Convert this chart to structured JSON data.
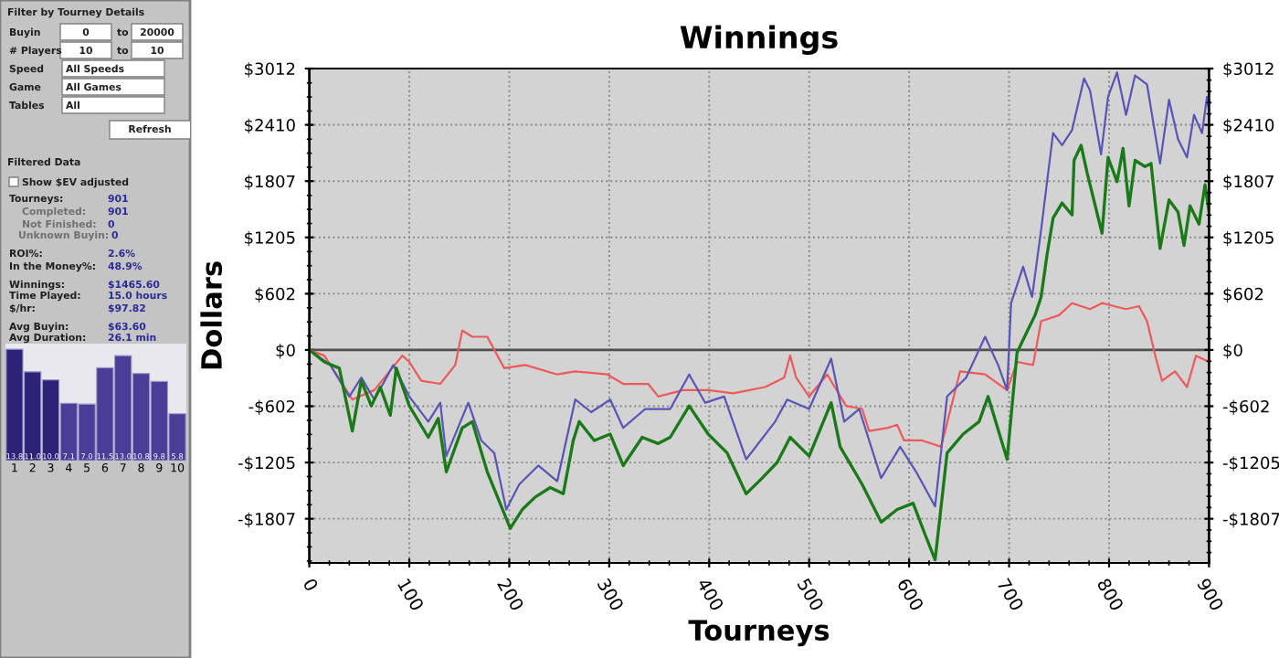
{
  "chart_data": [
    {
      "type": "line",
      "title": "Winnings",
      "xlabel": "Tourneys",
      "ylabel": "Dollars",
      "xlim": [
        0,
        900
      ],
      "xticks": [
        0,
        100,
        200,
        300,
        400,
        500,
        600,
        700,
        800,
        900
      ],
      "ylim": [
        -2280,
        3012
      ],
      "yticks": [
        {
          "value": -1807,
          "label": "-$1807"
        },
        {
          "value": -1205,
          "label": "-$1205"
        },
        {
          "value": -602,
          "label": "-$602"
        },
        {
          "value": 0,
          "label": "$0"
        },
        {
          "value": 602,
          "label": "$602"
        },
        {
          "value": 1205,
          "label": "$1205"
        },
        {
          "value": 1807,
          "label": "$1807"
        },
        {
          "value": 2410,
          "label": "$2410"
        },
        {
          "value": 3012,
          "label": "$3012"
        }
      ],
      "y2lim": [
        -2280,
        3012
      ],
      "y2ticks": [
        {
          "value": -1807,
          "label": "-$1807"
        },
        {
          "value": -1205,
          "label": "-$1205"
        },
        {
          "value": -602,
          "label": "-$602"
        },
        {
          "value": 0,
          "label": "$0"
        },
        {
          "value": 602,
          "label": "$602"
        },
        {
          "value": 1205,
          "label": "$1205"
        },
        {
          "value": 1807,
          "label": "$1807"
        },
        {
          "value": 2410,
          "label": "$2410"
        },
        {
          "value": 3012,
          "label": "$3012"
        }
      ],
      "grid": true,
      "legend": false,
      "ref_lines": [
        {
          "axis": "y",
          "value": 0,
          "color": "#505050"
        }
      ],
      "series": [
        {
          "color": "#ee5a5a",
          "x": [
            0,
            15,
            43,
            65,
            93,
            100,
            112,
            131,
            146,
            153,
            163,
            178,
            195,
            216,
            248,
            266,
            298,
            314,
            339,
            349,
            374,
            399,
            424,
            456,
            475,
            481,
            487,
            500,
            518,
            537,
            553,
            560,
            579,
            588,
            595,
            613,
            632,
            651,
            676,
            698,
            708,
            724,
            732,
            750,
            763,
            781,
            793,
            805,
            817,
            830,
            838,
            847,
            853,
            866,
            878,
            887,
            900
          ],
          "values": [
            0,
            -61,
            -531,
            -430,
            -61,
            -128,
            -330,
            -363,
            -161,
            208,
            141,
            141,
            -195,
            -161,
            -262,
            -229,
            -262,
            -363,
            -363,
            -498,
            -430,
            -430,
            -464,
            -397,
            -296,
            -61,
            -296,
            -498,
            -262,
            -599,
            -632,
            -868,
            -834,
            -801,
            -969,
            -969,
            -1036,
            -229,
            -262,
            -430,
            -128,
            -161,
            307,
            372,
            501,
            437,
            501,
            469,
            437,
            469,
            307,
            -94,
            -330,
            -229,
            -397,
            -61,
            -128
          ]
        },
        {
          "color": "#5a55b5",
          "x": [
            0,
            21,
            40,
            52,
            65,
            84,
            100,
            119,
            131,
            137,
            159,
            172,
            185,
            197,
            210,
            229,
            248,
            266,
            282,
            301,
            314,
            336,
            361,
            380,
            396,
            415,
            437,
            466,
            478,
            500,
            522,
            535,
            550,
            572,
            591,
            607,
            626,
            638,
            657,
            676,
            689,
            698,
            702,
            714,
            723,
            732,
            744,
            753,
            763,
            775,
            781,
            792,
            799,
            808,
            817,
            826,
            838,
            851,
            860,
            869,
            878,
            885,
            893,
            898,
            900
          ],
          "values": [
            0,
            -161,
            -498,
            -296,
            -531,
            -161,
            -498,
            -767,
            -565,
            -1137,
            -565,
            -969,
            -1103,
            -1708,
            -1439,
            -1238,
            -1405,
            -531,
            -666,
            -531,
            -834,
            -632,
            -632,
            -262,
            -565,
            -498,
            -1170,
            -767,
            -531,
            -632,
            -94,
            -767,
            -632,
            -1372,
            -1036,
            -1305,
            -1675,
            -498,
            -296,
            141,
            -161,
            -430,
            501,
            891,
            567,
            1281,
            2321,
            2191,
            2353,
            2906,
            2776,
            2093,
            2711,
            2971,
            2516,
            2938,
            2841,
            1996,
            2678,
            2256,
            2061,
            2516,
            2321,
            2711,
            2548
          ]
        },
        {
          "color": "#1a7a1a",
          "x": [
            0,
            15,
            30,
            43,
            52,
            62,
            71,
            81,
            87,
            100,
            119,
            129,
            137,
            153,
            163,
            178,
            201,
            213,
            226,
            241,
            254,
            264,
            270,
            285,
            301,
            314,
            333,
            349,
            361,
            380,
            399,
            418,
            437,
            453,
            468,
            481,
            500,
            522,
            531,
            553,
            572,
            588,
            604,
            616,
            626,
            638,
            654,
            670,
            679,
            698,
            708,
            717,
            726,
            732,
            738,
            744,
            753,
            763,
            765,
            772,
            778,
            793,
            799,
            808,
            814,
            820,
            826,
            836,
            842,
            851,
            860,
            869,
            875,
            881,
            890,
            896,
            900
          ],
          "values": [
            0,
            -128,
            -195,
            -868,
            -330,
            -599,
            -397,
            -700,
            -195,
            -599,
            -935,
            -733,
            -1305,
            -834,
            -767,
            -1305,
            -1910,
            -1708,
            -1574,
            -1473,
            -1540,
            -969,
            -767,
            -969,
            -901,
            -1238,
            -935,
            -1002,
            -935,
            -599,
            -901,
            -1103,
            -1540,
            -1372,
            -1204,
            -935,
            -1137,
            -565,
            -1036,
            -1439,
            -1843,
            -1708,
            -1641,
            -1977,
            -2246,
            -1103,
            -901,
            -767,
            -498,
            -1170,
            -27,
            175,
            372,
            567,
            1021,
            1411,
            1573,
            1444,
            2029,
            2191,
            1898,
            1249,
            2061,
            1801,
            2158,
            1542,
            2029,
            1963,
            1996,
            1086,
            1606,
            1476,
            1119,
            1542,
            1347,
            1768,
            1476
          ]
        }
      ]
    },
    {
      "type": "bar",
      "categories": [
        "1",
        "2",
        "3",
        "4",
        "5",
        "6",
        "7",
        "8",
        "9",
        "10"
      ],
      "values": [
        13.8,
        11.0,
        10.0,
        7.1,
        7.0,
        11.5,
        13.0,
        10.8,
        9.8,
        5.8
      ],
      "value_labels": [
        "13.8",
        "11.0",
        "10.0",
        "7.1",
        "7.0",
        "11.5",
        "13.0",
        "10.8",
        "9.8",
        "5.8"
      ],
      "colors": [
        "#2c2278",
        "#2c2278",
        "#2c2278",
        "#4a3d98",
        "#4a3d98",
        "#4a3d98",
        "#4a3d98",
        "#4a3d98",
        "#4a3d98",
        "#4a3d98"
      ],
      "tick_labels": "x"
    },
    {
      "type": "other",
      "annotations": [
        "Filter by Tourney Details",
        "Buyin",
        "0",
        "to",
        "20000",
        "# Players",
        "10",
        "to",
        "10",
        "Speed",
        "All Speeds",
        "Game",
        "All Games",
        "Tables",
        "All",
        "Refresh",
        "Filtered Data",
        "Show $EV adjusted",
        "Tourneys:",
        "901",
        "Completed:",
        "901",
        "Not Finished:",
        "0",
        "Unknown Buyin:",
        "0",
        "ROI%:",
        "2.6%",
        "In the Money%:",
        "48.9%",
        "Winnings:",
        "$1465.60",
        "Time Played:",
        "15.0 hours",
        "$/hr:",
        "$97.82",
        "Avg Buyin:",
        "$63.60",
        "Avg Duration:",
        "26.1 min"
      ]
    }
  ]
}
